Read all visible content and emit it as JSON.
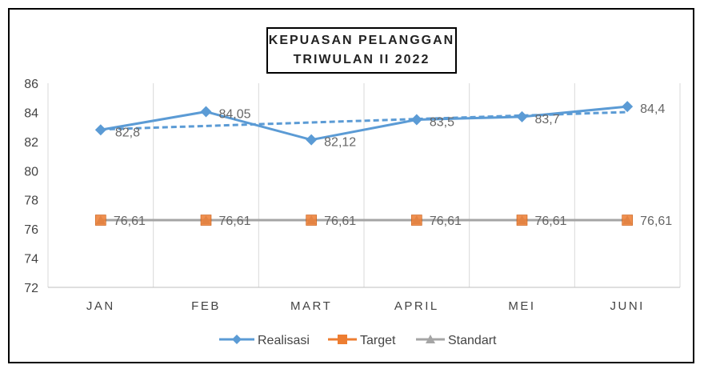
{
  "chart_data": {
    "type": "line",
    "title_lines": [
      "KEPUASAN PELANGGAN",
      "TRIWULAN II 2022"
    ],
    "categories": [
      "JAN",
      "FEB",
      "MART",
      "APRIL",
      "MEI",
      "JUNI"
    ],
    "ylim": [
      72,
      86
    ],
    "yticks": [
      72,
      74,
      76,
      78,
      80,
      82,
      84,
      86
    ],
    "grid": "vertical category lines",
    "legend_position": "bottom",
    "series": [
      {
        "name": "Realisasi",
        "values": [
          82.8,
          84.05,
          82.12,
          83.5,
          83.7,
          84.4
        ],
        "data_labels": [
          "82,8",
          "84,05",
          "82,12",
          "83,5",
          "83,7",
          "84,4"
        ],
        "color": "#5B9BD5",
        "marker": "diamond",
        "trendline": "dashed linear"
      },
      {
        "name": "Target",
        "values": [
          76.61,
          76.61,
          76.61,
          76.61,
          76.61,
          76.61
        ],
        "data_labels": [
          "76,61",
          "76,61",
          "76,61",
          "76,61",
          "76,61",
          "76,61"
        ],
        "color": "#ED7D31",
        "marker": "square"
      },
      {
        "name": "Standart",
        "values": [
          76.61,
          76.61,
          76.61,
          76.61,
          76.61,
          76.61
        ],
        "color": "#A5A5A5",
        "marker": "triangle"
      }
    ]
  }
}
